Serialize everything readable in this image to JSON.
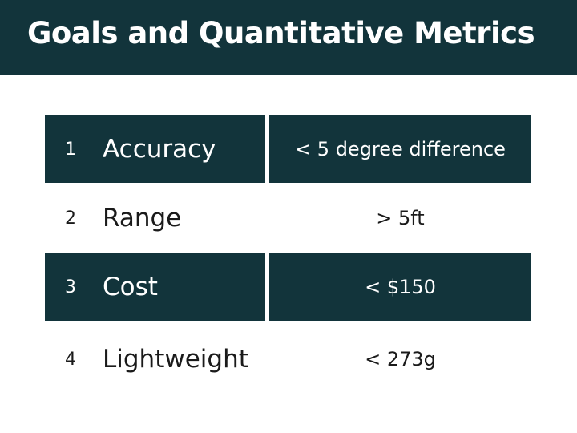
{
  "header": {
    "title": "Goals and Quantitative Metrics"
  },
  "table": {
    "rows": [
      [
        "1",
        "Accuracy",
        "< 5 degree difference"
      ],
      [
        "2",
        "Range",
        "> 5ft"
      ],
      [
        "3",
        "Cost",
        "< $150"
      ],
      [
        "4",
        "Lightweight",
        "< 273g"
      ]
    ]
  }
}
